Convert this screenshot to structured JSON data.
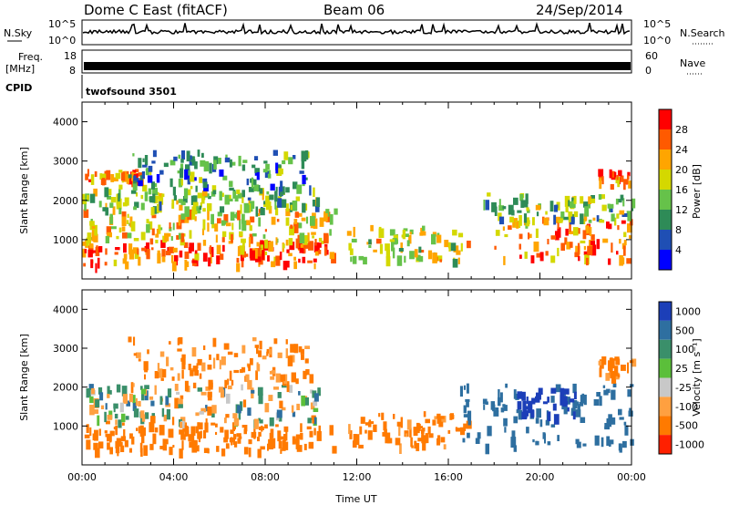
{
  "header": {
    "title": "Dome C East (fitACF)",
    "beam": "Beam 06",
    "date": "24/Sep/2014"
  },
  "noise_panel": {
    "left_label": "N.Sky",
    "left_ticks": [
      "10^5",
      "10^0"
    ],
    "right_label": "N.Search",
    "right_ticks": [
      "10^5",
      "10^0"
    ]
  },
  "freq_panel": {
    "left_label_top": "Freq.",
    "left_label_unit": "[MHz]",
    "left_ticks": [
      "18",
      "8"
    ],
    "right_label": "Nave",
    "right_ticks": [
      "60",
      "0"
    ]
  },
  "cpid_panel": {
    "label": "CPID",
    "program": "twofsound 3501"
  },
  "power_panel": {
    "ylabel": "Slant Range [km]",
    "cbar_label": "Power [dB]",
    "cbar_ticks": [
      "28",
      "24",
      "20",
      "16",
      "12",
      "8",
      "4"
    ]
  },
  "velocity_panel": {
    "ylabel": "Slant Range [km]",
    "cbar_label": "Velocity [m s⁻¹]",
    "cbar_ticks": [
      "1000",
      "500",
      "100",
      "25",
      "-25",
      "-100",
      "-500",
      "-1000"
    ]
  },
  "xaxis": {
    "label": "Time UT",
    "ticks": [
      "00:00",
      "04:00",
      "08:00",
      "12:00",
      "16:00",
      "20:00",
      "00:00"
    ]
  },
  "colors": {
    "power_scale": [
      "#0000ff",
      "#1f4fb4",
      "#2e8b57",
      "#66c24a",
      "#d4d800",
      "#ffa500",
      "#ff5a00",
      "#ff0000"
    ],
    "velocity_scale": [
      "#1c3fb8",
      "#2e6fa0",
      "#3a8f6a",
      "#5bbf3a",
      "#c8c8c8",
      "#ffa040",
      "#ff7a00",
      "#ff2000"
    ]
  },
  "chart_data": [
    {
      "type": "heatmap",
      "name": "Power",
      "xlabel": "Time UT",
      "ylabel": "Slant Range [km]",
      "xlim": [
        "00:00",
        "24:00"
      ],
      "ylim": [
        0,
        4500
      ],
      "y_ticks": [
        1000,
        2000,
        3000,
        4000
      ],
      "colorbar": {
        "label": "Power [dB]",
        "ticks": [
          4,
          8,
          12,
          16,
          20,
          24,
          28
        ],
        "range": [
          0,
          32
        ]
      },
      "echo_regions": [
        {
          "t_start": 0.0,
          "t_end": 11.0,
          "range_min": 400,
          "range_max": 1000,
          "power_db": 26
        },
        {
          "t_start": 0.0,
          "t_end": 11.0,
          "range_min": 1000,
          "range_max": 1800,
          "power_db": 20
        },
        {
          "t_start": 0.0,
          "t_end": 10.5,
          "range_min": 1800,
          "range_max": 2400,
          "power_db": 14
        },
        {
          "t_start": 0.0,
          "t_end": 2.5,
          "range_min": 2500,
          "range_max": 2800,
          "power_db": 24
        },
        {
          "t_start": 2.0,
          "t_end": 10.0,
          "range_min": 2400,
          "range_max": 3300,
          "power_db": 10
        },
        {
          "t_start": 11.5,
          "t_end": 16.8,
          "range_min": 500,
          "range_max": 1400,
          "power_db": 18
        },
        {
          "t_start": 18.0,
          "t_end": 24.0,
          "range_min": 500,
          "range_max": 1600,
          "power_db": 24
        },
        {
          "t_start": 17.5,
          "t_end": 24.0,
          "range_min": 1500,
          "range_max": 2200,
          "power_db": 14
        },
        {
          "t_start": 22.5,
          "t_end": 24.0,
          "range_min": 2400,
          "range_max": 2800,
          "power_db": 26
        }
      ]
    },
    {
      "type": "heatmap",
      "name": "Velocity",
      "xlabel": "Time UT",
      "ylabel": "Slant Range [km]",
      "xlim": [
        "00:00",
        "24:00"
      ],
      "ylim": [
        0,
        4500
      ],
      "y_ticks": [
        1000,
        2000,
        3000,
        4000
      ],
      "colorbar": {
        "label": "Velocity [m s⁻¹]",
        "ticks": [
          -1000,
          -500,
          -100,
          -25,
          25,
          100,
          500,
          1000
        ]
      },
      "echo_regions": [
        {
          "t_start": 0.0,
          "t_end": 11.0,
          "range_min": 400,
          "range_max": 1100,
          "velocity": -300
        },
        {
          "t_start": 0.0,
          "t_end": 10.5,
          "range_min": 1100,
          "range_max": 2100,
          "velocity": 0
        },
        {
          "t_start": 2.0,
          "t_end": 10.0,
          "range_min": 2100,
          "range_max": 3300,
          "velocity": -150
        },
        {
          "t_start": 11.5,
          "t_end": 16.8,
          "range_min": 500,
          "range_max": 1400,
          "velocity": -200
        },
        {
          "t_start": 16.5,
          "t_end": 24.0,
          "range_min": 500,
          "range_max": 2100,
          "velocity": 300
        },
        {
          "t_start": 19.0,
          "t_end": 21.5,
          "range_min": 1300,
          "range_max": 2000,
          "velocity": 900
        },
        {
          "t_start": 22.5,
          "t_end": 24.0,
          "range_min": 2300,
          "range_max": 2800,
          "velocity": -150
        }
      ]
    }
  ]
}
